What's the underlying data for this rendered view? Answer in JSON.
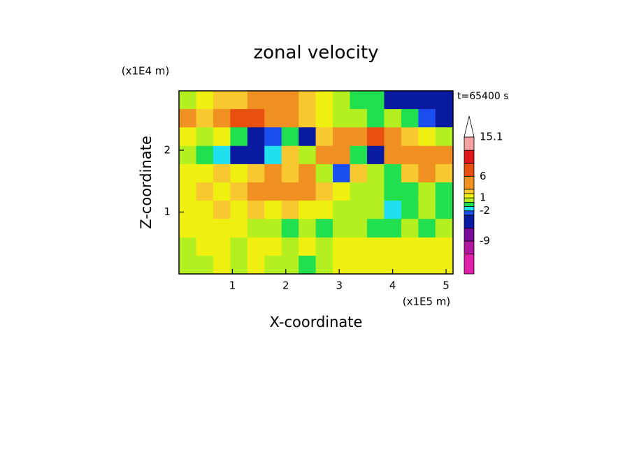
{
  "chart_data": {
    "type": "filled-contour",
    "title": "zonal velocity",
    "x_label": "X-coordinate",
    "y_label": "Z-coordinate",
    "x_unit": "(x1E5 m)",
    "y_unit": "(x1E4 m)",
    "annotation": "t=65400 s",
    "xlim": [
      0,
      5.13
    ],
    "ylim": [
      0,
      2.96
    ],
    "xticks": [
      1,
      2,
      3,
      4,
      5
    ],
    "yticks": [
      1,
      2
    ],
    "x": [
      0.16,
      0.48,
      0.8,
      1.12,
      1.44,
      1.76,
      2.08,
      2.4,
      2.72,
      3.04,
      3.36,
      3.68,
      4.0,
      4.32,
      4.64,
      4.96
    ],
    "z": [
      2.81,
      2.52,
      2.22,
      1.92,
      1.63,
      1.33,
      1.04,
      0.74,
      0.44,
      0.15
    ],
    "values": [
      [
        0.5,
        1.5,
        2,
        2.5,
        3.5,
        4,
        3,
        2,
        1,
        0,
        -0.5,
        -1,
        -4,
        -5,
        -4,
        -4
      ],
      [
        4,
        2,
        5,
        7,
        7,
        5,
        4,
        2,
        1.5,
        0.5,
        0,
        -1,
        0.5,
        -1,
        -3,
        -4
      ],
      [
        1,
        0,
        1,
        -1,
        -4,
        -3,
        -1,
        -5,
        2,
        3,
        5,
        6,
        4,
        2,
        1,
        0.5
      ],
      [
        0.5,
        -1,
        -2,
        -5,
        -5,
        -2,
        2,
        0,
        3,
        4,
        -1,
        -4,
        3,
        5,
        4,
        3
      ],
      [
        1,
        1.5,
        2,
        1.5,
        2,
        3,
        2.5,
        3,
        0,
        -3,
        2,
        0,
        -1,
        2,
        3,
        2
      ],
      [
        1.5,
        2,
        1.5,
        2,
        3,
        4,
        4,
        3,
        2,
        1,
        0,
        0,
        -1,
        -1,
        0,
        -0.5
      ],
      [
        1.5,
        1,
        2,
        1.5,
        2,
        1,
        2,
        1.5,
        1,
        0.5,
        0,
        0,
        -1.5,
        -1,
        0,
        -0.5
      ],
      [
        1,
        1,
        1.5,
        1,
        0,
        0,
        -0.5,
        0,
        -0.5,
        0,
        0,
        -1,
        -1,
        0,
        -0.5,
        0
      ],
      [
        0.5,
        1,
        1.5,
        0,
        1,
        1,
        0,
        1.5,
        0.5,
        1,
        1.5,
        1.5,
        1,
        1,
        1.5,
        1
      ],
      [
        0,
        0.5,
        1,
        0,
        1,
        0,
        0,
        -1,
        0,
        1,
        1.5,
        1.5,
        1,
        1.5,
        1.5,
        1
      ]
    ],
    "levels": [
      -16.6,
      -12,
      -9,
      -6,
      -3,
      -2,
      -1,
      0,
      1,
      2,
      3,
      6,
      9,
      12,
      15.1
    ],
    "level_colors": [
      "#e020a8",
      "#b0169e",
      "#7a0a9a",
      "#0a1aa0",
      "#1a4ef0",
      "#20e0f0",
      "#20e050",
      "#b4f020",
      "#f0f010",
      "#f8c830",
      "#f09020",
      "#e85010",
      "#e01818",
      "#f4a0a0"
    ],
    "over_color": "#ffffff",
    "colorbar_ticks": [
      15.1,
      6,
      1,
      -2,
      -9
    ]
  }
}
